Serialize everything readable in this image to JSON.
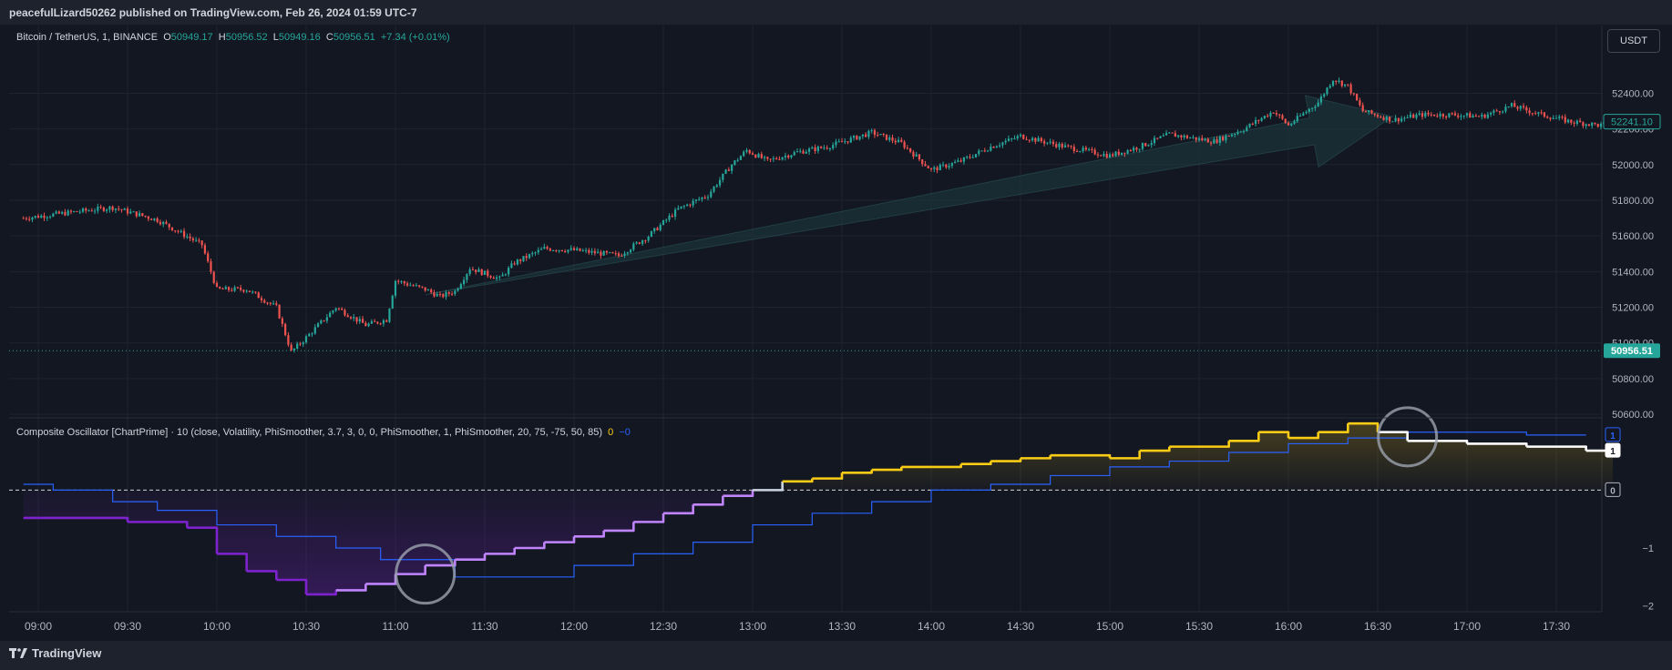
{
  "header": {
    "publish_line": "peacefulLizard50262 published on TradingView.com, Feb 26, 2024 01:59 UTC-7"
  },
  "legend": {
    "symbol": "Bitcoin / TetherUS, 1, BINANCE",
    "o_label": "O",
    "o_value": "50949.17",
    "h_label": "H",
    "h_value": "50956.52",
    "l_label": "L",
    "l_value": "50949.16",
    "c_label": "C",
    "c_value": "50956.51",
    "change": "+7.34 (+0.01%)"
  },
  "indicator": {
    "title": "Composite Oscillator [ChartPrime] · 10 (close, Volatility, PhiSmoother, 3.7, 3, 0, 0, PhiSmoother, 1, PhiSmoother, 20, 75, -75, 50, 85)",
    "value_a": "0",
    "value_b": "−0"
  },
  "currency_button": "USDT",
  "brand": "TradingView",
  "colors": {
    "up": "#26a69a",
    "down": "#ef5350",
    "bg": "#131722",
    "osc_purple": "#7e22ce",
    "osc_lilac": "#c084fc",
    "osc_yellow": "#facc15",
    "osc_white": "#ffffff",
    "signal": "#2962ff"
  },
  "chart_data": [
    {
      "type": "candlestick",
      "title": "Bitcoin / TetherUS, 1, BINANCE",
      "x_ticks": [
        "09:00",
        "09:30",
        "10:00",
        "10:30",
        "11:00",
        "11:30",
        "12:00",
        "12:30",
        "13:00",
        "13:30",
        "14:00",
        "14:30",
        "15:00",
        "15:30",
        "16:00",
        "16:30",
        "17:00",
        "17:30"
      ],
      "y_ticks": [
        "52400.00",
        "52200.00",
        "52000.00",
        "51800.00",
        "51600.00",
        "51400.00",
        "51200.00",
        "51000.00",
        "50800.00",
        "50600.00"
      ],
      "ylim": [
        50580,
        52780
      ],
      "price_path": [
        [
          "08:55",
          51700
        ],
        [
          "09:10",
          51730
        ],
        [
          "09:25",
          51760
        ],
        [
          "09:40",
          51690
        ],
        [
          "09:55",
          51550
        ],
        [
          "10:00",
          51300
        ],
        [
          "10:10",
          51300
        ],
        [
          "10:20",
          51200
        ],
        [
          "10:25",
          50950
        ],
        [
          "10:30",
          51030
        ],
        [
          "10:40",
          51200
        ],
        [
          "10:50",
          51100
        ],
        [
          "10:57",
          51130
        ],
        [
          "11:00",
          51350
        ],
        [
          "11:10",
          51300
        ],
        [
          "11:15",
          51260
        ],
        [
          "11:20",
          51290
        ],
        [
          "11:25",
          51420
        ],
        [
          "11:35",
          51360
        ],
        [
          "11:40",
          51450
        ],
        [
          "11:50",
          51530
        ],
        [
          "12:00",
          51520
        ],
        [
          "12:15",
          51490
        ],
        [
          "12:25",
          51600
        ],
        [
          "12:35",
          51750
        ],
        [
          "12:45",
          51830
        ],
        [
          "12:53",
          52000
        ],
        [
          "12:58",
          52080
        ],
        [
          "13:05",
          52020
        ],
        [
          "13:15",
          52070
        ],
        [
          "13:25",
          52100
        ],
        [
          "13:40",
          52180
        ],
        [
          "13:50",
          52120
        ],
        [
          "14:00",
          51970
        ],
        [
          "14:10",
          52020
        ],
        [
          "14:20",
          52100
        ],
        [
          "14:30",
          52160
        ],
        [
          "14:45",
          52100
        ],
        [
          "15:00",
          52050
        ],
        [
          "15:10",
          52100
        ],
        [
          "15:20",
          52170
        ],
        [
          "15:35",
          52130
        ],
        [
          "15:45",
          52200
        ],
        [
          "15:55",
          52300
        ],
        [
          "16:00",
          52220
        ],
        [
          "16:10",
          52350
        ],
        [
          "16:15",
          52480
        ],
        [
          "16:20",
          52440
        ],
        [
          "16:25",
          52300
        ],
        [
          "16:35",
          52250
        ],
        [
          "16:45",
          52280
        ],
        [
          "16:55",
          52280
        ],
        [
          "17:05",
          52270
        ],
        [
          "17:15",
          52330
        ],
        [
          "17:25",
          52280
        ],
        [
          "17:35",
          52240
        ],
        [
          "17:45",
          52220
        ],
        [
          "17:49",
          52240
        ]
      ],
      "last_price": "50956.51",
      "last_close_label": "52241.10",
      "annotation": "arrow from 11:10 (51270) to 16:35 (52270)"
    },
    {
      "type": "line",
      "title": "Composite Oscillator [ChartPrime]",
      "y_ticks": [
        "−1",
        "−2"
      ],
      "ylim": [
        -2.1,
        1.2
      ],
      "level_labels": [
        "1",
        "1",
        "0"
      ],
      "oscillator": [
        [
          "08:55",
          -0.48
        ],
        [
          "09:30",
          -0.55
        ],
        [
          "09:50",
          -0.65
        ],
        [
          "10:00",
          -1.1
        ],
        [
          "10:10",
          -1.4
        ],
        [
          "10:20",
          -1.55
        ],
        [
          "10:30",
          -1.8
        ],
        [
          "10:40",
          -1.73
        ],
        [
          "10:50",
          -1.62
        ],
        [
          "11:00",
          -1.45
        ],
        [
          "11:10",
          -1.3
        ],
        [
          "11:20",
          -1.2
        ],
        [
          "11:30",
          -1.1
        ],
        [
          "11:40",
          -1.0
        ],
        [
          "11:50",
          -0.9
        ],
        [
          "12:00",
          -0.8
        ],
        [
          "12:10",
          -0.7
        ],
        [
          "12:20",
          -0.55
        ],
        [
          "12:30",
          -0.4
        ],
        [
          "12:40",
          -0.25
        ],
        [
          "12:50",
          -0.1
        ],
        [
          "13:00",
          0.0
        ],
        [
          "13:10",
          0.15
        ],
        [
          "13:20",
          0.2
        ],
        [
          "13:30",
          0.3
        ],
        [
          "13:40",
          0.35
        ],
        [
          "13:50",
          0.4
        ],
        [
          "14:10",
          0.45
        ],
        [
          "14:20",
          0.5
        ],
        [
          "14:30",
          0.55
        ],
        [
          "14:40",
          0.6
        ],
        [
          "15:00",
          0.55
        ],
        [
          "15:10",
          0.68
        ],
        [
          "15:20",
          0.75
        ],
        [
          "15:40",
          0.85
        ],
        [
          "15:50",
          1.0
        ],
        [
          "16:00",
          0.9
        ],
        [
          "16:10",
          1.0
        ],
        [
          "16:20",
          1.15
        ],
        [
          "16:30",
          1.0
        ],
        [
          "16:40",
          0.85
        ],
        [
          "17:00",
          0.8
        ],
        [
          "17:20",
          0.75
        ],
        [
          "17:40",
          0.68
        ],
        [
          "17:49",
          0.68
        ]
      ],
      "signal": [
        [
          "08:55",
          0.1
        ],
        [
          "09:05",
          0.0
        ],
        [
          "09:25",
          -0.2
        ],
        [
          "09:40",
          -0.35
        ],
        [
          "10:00",
          -0.6
        ],
        [
          "10:20",
          -0.8
        ],
        [
          "10:40",
          -1.0
        ],
        [
          "10:55",
          -1.2
        ],
        [
          "11:20",
          -1.5
        ],
        [
          "11:40",
          -1.5
        ],
        [
          "12:00",
          -1.3
        ],
        [
          "12:20",
          -1.1
        ],
        [
          "12:40",
          -0.9
        ],
        [
          "13:00",
          -0.6
        ],
        [
          "13:20",
          -0.4
        ],
        [
          "13:40",
          -0.2
        ],
        [
          "14:00",
          0.0
        ],
        [
          "14:20",
          0.1
        ],
        [
          "14:40",
          0.25
        ],
        [
          "15:00",
          0.4
        ],
        [
          "15:20",
          0.5
        ],
        [
          "15:40",
          0.65
        ],
        [
          "16:00",
          0.8
        ],
        [
          "16:20",
          0.9
        ],
        [
          "16:40",
          1.0
        ],
        [
          "17:00",
          1.0
        ],
        [
          "17:20",
          0.95
        ],
        [
          "17:40",
          0.95
        ]
      ]
    }
  ]
}
